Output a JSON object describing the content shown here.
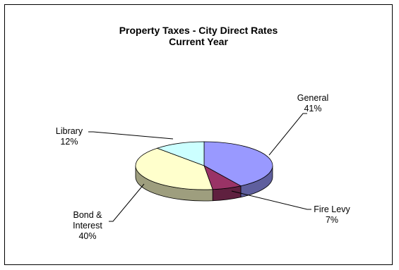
{
  "chart_data": {
    "type": "pie",
    "title": "Property Taxes -  City Direct Rates",
    "subtitle": "Current Year",
    "slices": [
      {
        "label": "General",
        "value": 41,
        "value_label": "41%",
        "color": "#9999ff"
      },
      {
        "label": "Fire Levy",
        "value": 7,
        "value_label": "7%",
        "color": "#993366"
      },
      {
        "label": "Bond & Interest",
        "label_lines": [
          "Bond &",
          "Interest"
        ],
        "value": 40,
        "value_label": "40%",
        "color": "#ffffcc"
      },
      {
        "label": "Library",
        "value": 12,
        "value_label": "12%",
        "color": "#ccffff"
      }
    ],
    "legend": "none",
    "style": "3d-pie"
  }
}
